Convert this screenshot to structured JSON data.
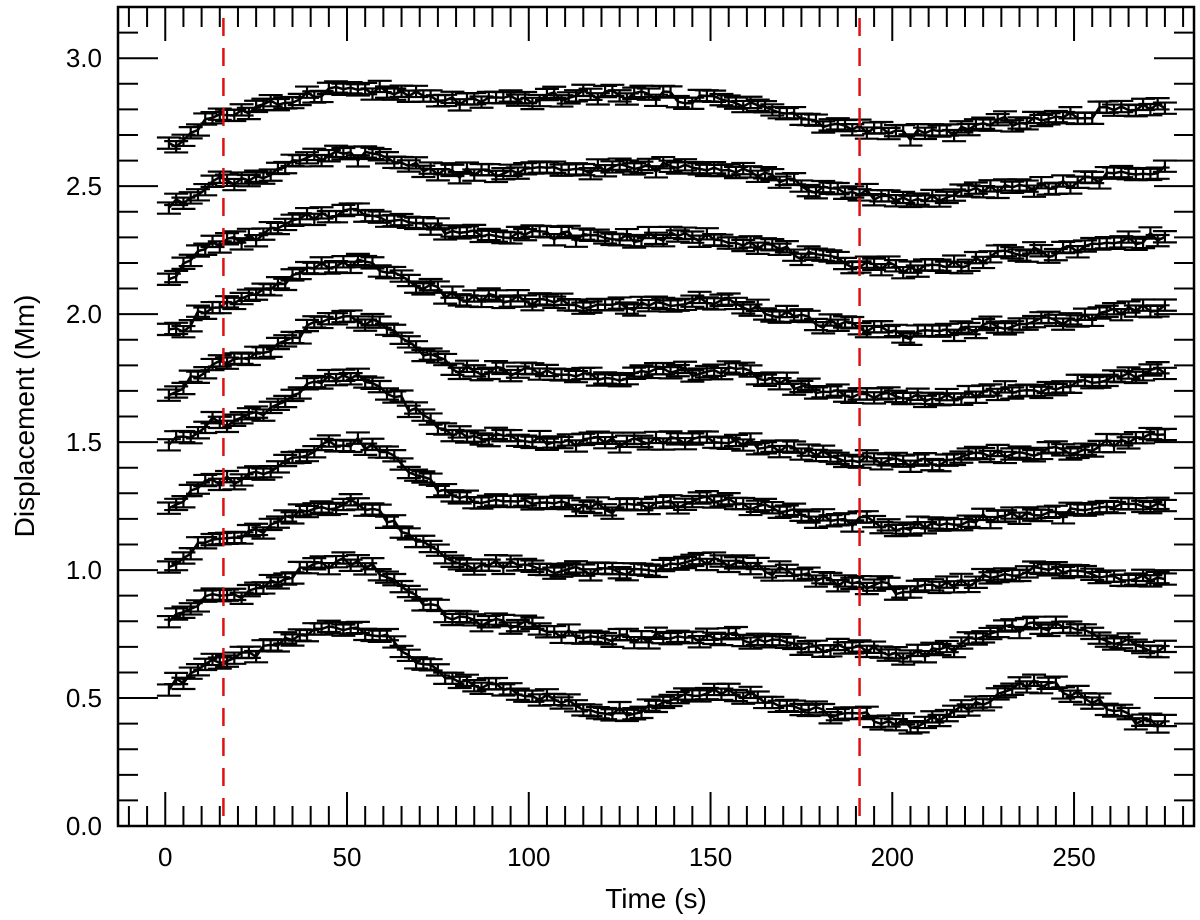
{
  "chart_data": {
    "type": "line",
    "title": "",
    "xlabel": "Time (s)",
    "ylabel": "Displacement (Mm)",
    "xlim": [
      -13,
      283
    ],
    "ylim": [
      0.0,
      3.2
    ],
    "x_major_ticks": [
      0,
      50,
      100,
      150,
      200,
      250
    ],
    "x_tick_labels": [
      "0",
      "50",
      "100",
      "150",
      "200",
      "250"
    ],
    "y_major_ticks": [
      0.0,
      0.5,
      1.0,
      1.5,
      2.0,
      2.5,
      3.0
    ],
    "y_tick_labels": [
      "0.0",
      "0.5",
      "1.0",
      "1.5",
      "2.0",
      "2.5",
      "3.0"
    ],
    "grid": false,
    "legend": "none",
    "error_bars": true,
    "line_color": "#000000",
    "marker_x_lines": [
      {
        "x": 16,
        "color": "#dd1111",
        "style": "dashed"
      },
      {
        "x": 191,
        "color": "#dd1111",
        "style": "dashed"
      }
    ],
    "x_knots": [
      0,
      15,
      50,
      85,
      125,
      150,
      190,
      205,
      240,
      275
    ],
    "series": [
      {
        "y_knots": [
          0.55,
          0.65,
          0.78,
          0.55,
          0.45,
          0.53,
          0.43,
          0.4,
          0.55,
          0.4
        ]
      },
      {
        "y_knots": [
          0.81,
          0.9,
          1.03,
          0.8,
          0.73,
          0.74,
          0.69,
          0.67,
          0.78,
          0.7
        ]
      },
      {
        "y_knots": [
          1.03,
          1.12,
          1.26,
          1.02,
          0.99,
          1.03,
          0.95,
          0.92,
          1.0,
          0.97
        ]
      },
      {
        "y_knots": [
          1.25,
          1.35,
          1.5,
          1.28,
          1.24,
          1.27,
          1.19,
          1.17,
          1.22,
          1.25
        ]
      },
      {
        "y_knots": [
          1.5,
          1.58,
          1.75,
          1.52,
          1.5,
          1.51,
          1.44,
          1.42,
          1.46,
          1.52
        ]
      },
      {
        "y_knots": [
          1.7,
          1.8,
          1.98,
          1.78,
          1.76,
          1.78,
          1.69,
          1.67,
          1.71,
          1.78
        ]
      },
      {
        "y_knots": [
          1.92,
          2.04,
          2.2,
          2.06,
          2.03,
          2.05,
          1.95,
          1.92,
          1.97,
          2.03
        ]
      },
      {
        "y_knots": [
          2.15,
          2.28,
          2.4,
          2.32,
          2.3,
          2.3,
          2.2,
          2.18,
          2.24,
          2.3
        ]
      },
      {
        "y_knots": [
          2.42,
          2.52,
          2.62,
          2.55,
          2.57,
          2.58,
          2.47,
          2.45,
          2.5,
          2.56
        ]
      },
      {
        "y_knots": [
          2.65,
          2.78,
          2.88,
          2.83,
          2.86,
          2.84,
          2.73,
          2.7,
          2.76,
          2.82
        ]
      }
    ]
  }
}
